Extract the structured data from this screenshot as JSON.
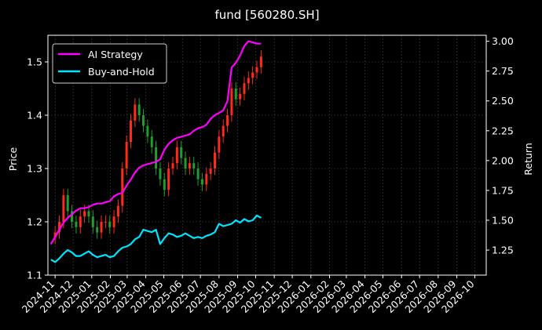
{
  "chart_data": {
    "type": "line",
    "title": "fund [560280.SH]",
    "xlabel": "",
    "ylabel": "Price",
    "y2label": "Return",
    "background": "#000000",
    "grid": true,
    "legend_position": "top-left",
    "x_ticks": [
      "2024-11",
      "2024-12",
      "2025-01",
      "2025-02",
      "2025-03",
      "2025-04",
      "2025-05",
      "2025-06",
      "2025-07",
      "2025-08",
      "2025-09",
      "2025-10",
      "2025-11",
      "2025-12",
      "2026-01",
      "2026-02",
      "2026-03",
      "2026-04",
      "2026-05",
      "2026-06",
      "2026-07",
      "2026-08",
      "2026-09",
      "2026-10"
    ],
    "xlim": [
      "2024-10-20",
      "2026-10-20"
    ],
    "ylim_left": [
      1.1,
      1.55
    ],
    "yticks_left": [
      "1.1",
      "1.2",
      "1.3",
      "1.4",
      "1.5"
    ],
    "ylim_right": [
      1.04,
      3.05
    ],
    "yticks_right": [
      "1.25",
      "1.50",
      "1.75",
      "2.00",
      "2.25",
      "2.50",
      "2.75",
      "3.00"
    ],
    "candle_colors": {
      "up": "#ff2a1a",
      "down": "#1f9e2c"
    },
    "price_series": {
      "name": "Price",
      "axis": "left",
      "dates": [
        "2024-10-25",
        "2024-11-01",
        "2024-11-08",
        "2024-11-15",
        "2024-11-22",
        "2024-11-29",
        "2024-12-06",
        "2024-12-13",
        "2024-12-20",
        "2024-12-27",
        "2025-01-03",
        "2025-01-10",
        "2025-01-17",
        "2025-01-24",
        "2025-01-31",
        "2025-02-07",
        "2025-02-14",
        "2025-02-21",
        "2025-02-28",
        "2025-03-07",
        "2025-03-14",
        "2025-03-21",
        "2025-03-28",
        "2025-04-04",
        "2025-04-11",
        "2025-04-18",
        "2025-04-25",
        "2025-05-02",
        "2025-05-09",
        "2025-05-16",
        "2025-05-23",
        "2025-05-30",
        "2025-06-06",
        "2025-06-13",
        "2025-06-20",
        "2025-06-27",
        "2025-07-04",
        "2025-07-11",
        "2025-07-18",
        "2025-07-25",
        "2025-08-01",
        "2025-08-08",
        "2025-08-15",
        "2025-08-22",
        "2025-08-29",
        "2025-09-05",
        "2025-09-12",
        "2025-09-19",
        "2025-09-26",
        "2025-10-03",
        "2025-10-10"
      ],
      "values": [
        1.17,
        1.18,
        1.2,
        1.25,
        1.22,
        1.2,
        1.19,
        1.21,
        1.22,
        1.21,
        1.19,
        1.18,
        1.2,
        1.2,
        1.19,
        1.21,
        1.23,
        1.3,
        1.35,
        1.39,
        1.42,
        1.4,
        1.38,
        1.36,
        1.34,
        1.3,
        1.28,
        1.26,
        1.3,
        1.31,
        1.34,
        1.32,
        1.3,
        1.31,
        1.3,
        1.28,
        1.27,
        1.29,
        1.3,
        1.33,
        1.36,
        1.38,
        1.4,
        1.45,
        1.43,
        1.44,
        1.46,
        1.47,
        1.48,
        1.49,
        1.51
      ]
    },
    "series": [
      {
        "name": "AI Strategy",
        "color": "#ff00ff",
        "axis": "right",
        "dates": [
          "2024-10-25",
          "2024-11-01",
          "2024-11-08",
          "2024-11-15",
          "2024-11-22",
          "2024-11-29",
          "2024-12-06",
          "2024-12-13",
          "2024-12-20",
          "2024-12-27",
          "2025-01-03",
          "2025-01-10",
          "2025-01-17",
          "2025-01-24",
          "2025-01-31",
          "2025-02-07",
          "2025-02-14",
          "2025-02-21",
          "2025-02-28",
          "2025-03-07",
          "2025-03-14",
          "2025-03-21",
          "2025-03-28",
          "2025-04-04",
          "2025-04-11",
          "2025-04-18",
          "2025-04-25",
          "2025-05-02",
          "2025-05-09",
          "2025-05-16",
          "2025-05-23",
          "2025-05-30",
          "2025-06-06",
          "2025-06-13",
          "2025-06-20",
          "2025-06-27",
          "2025-07-04",
          "2025-07-11",
          "2025-07-18",
          "2025-07-25",
          "2025-08-01",
          "2025-08-08",
          "2025-08-15",
          "2025-08-22",
          "2025-08-29",
          "2025-09-05",
          "2025-09-12",
          "2025-09-19",
          "2025-09-26",
          "2025-10-03",
          "2025-10-10"
        ],
        "values": [
          1.3,
          1.36,
          1.42,
          1.48,
          1.52,
          1.55,
          1.58,
          1.6,
          1.6,
          1.61,
          1.63,
          1.64,
          1.64,
          1.65,
          1.66,
          1.7,
          1.72,
          1.73,
          1.79,
          1.84,
          1.9,
          1.94,
          1.96,
          1.97,
          1.98,
          1.99,
          2.01,
          2.09,
          2.14,
          2.17,
          2.19,
          2.2,
          2.21,
          2.22,
          2.25,
          2.27,
          2.28,
          2.3,
          2.35,
          2.38,
          2.4,
          2.42,
          2.5,
          2.78,
          2.82,
          2.88,
          2.96,
          3.0,
          2.99,
          2.98,
          2.98
        ]
      },
      {
        "name": "Buy-and-Hold",
        "color": "#00e5ff",
        "axis": "right",
        "dates": [
          "2024-10-25",
          "2024-11-01",
          "2024-11-08",
          "2024-11-15",
          "2024-11-22",
          "2024-11-29",
          "2024-12-06",
          "2024-12-13",
          "2024-12-20",
          "2024-12-27",
          "2025-01-03",
          "2025-01-10",
          "2025-01-17",
          "2025-01-24",
          "2025-01-31",
          "2025-02-07",
          "2025-02-14",
          "2025-02-21",
          "2025-02-28",
          "2025-03-07",
          "2025-03-14",
          "2025-03-21",
          "2025-03-28",
          "2025-04-04",
          "2025-04-11",
          "2025-04-18",
          "2025-04-25",
          "2025-05-02",
          "2025-05-09",
          "2025-05-16",
          "2025-05-23",
          "2025-05-30",
          "2025-06-06",
          "2025-06-13",
          "2025-06-20",
          "2025-06-27",
          "2025-07-04",
          "2025-07-11",
          "2025-07-18",
          "2025-07-25",
          "2025-08-01",
          "2025-08-08",
          "2025-08-15",
          "2025-08-22",
          "2025-08-29",
          "2025-09-05",
          "2025-09-12",
          "2025-09-19",
          "2025-09-26",
          "2025-10-03",
          "2025-10-10"
        ],
        "values": [
          1.17,
          1.15,
          1.18,
          1.22,
          1.25,
          1.23,
          1.2,
          1.2,
          1.22,
          1.24,
          1.21,
          1.19,
          1.2,
          1.21,
          1.19,
          1.2,
          1.24,
          1.27,
          1.28,
          1.3,
          1.34,
          1.36,
          1.42,
          1.41,
          1.4,
          1.42,
          1.3,
          1.35,
          1.39,
          1.38,
          1.36,
          1.37,
          1.39,
          1.37,
          1.35,
          1.36,
          1.35,
          1.37,
          1.38,
          1.4,
          1.47,
          1.45,
          1.46,
          1.47,
          1.5,
          1.48,
          1.51,
          1.49,
          1.5,
          1.54,
          1.52
        ]
      }
    ]
  }
}
